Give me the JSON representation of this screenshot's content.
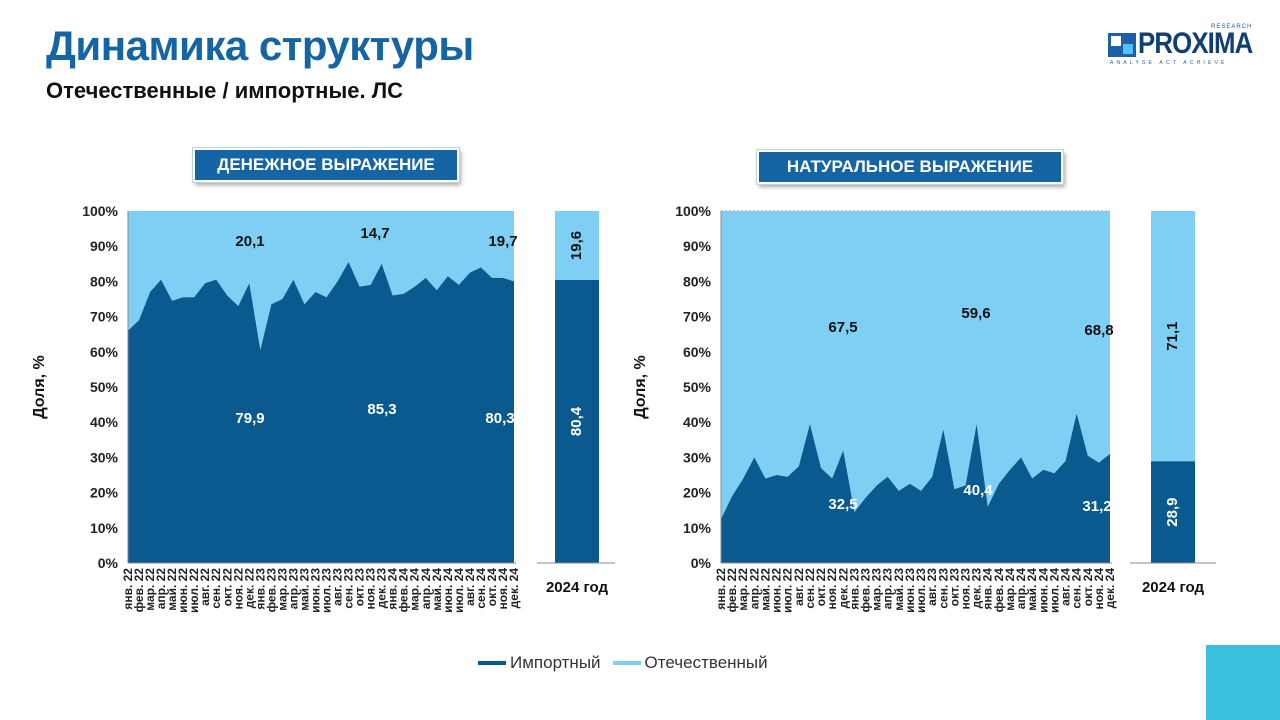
{
  "header": {
    "title": "Динамика структуры",
    "subtitle": "Отечественные / импортные. ЛС"
  },
  "logo": {
    "name": "PROXIMA",
    "research": "RESEARCH",
    "tagline": "ANALYSE  ACT  ACHIEVE"
  },
  "panels": {
    "left_label": "ДЕНЕЖНОЕ ВЫРАЖЕНИЕ",
    "right_label": "НАТУРАЛЬНОЕ ВЫРАЖЕНИЕ"
  },
  "legend": {
    "items": [
      {
        "label": "Импортный",
        "color": "#0a5a8f"
      },
      {
        "label": "Отечественный",
        "color": "#7fcff5"
      }
    ]
  },
  "colors": {
    "import": "#0a5a8f",
    "domestic": "#7fcff5",
    "title": "#1565a5",
    "accent_square": "#3bbfdf"
  },
  "chart_data": [
    {
      "type": "area",
      "stacked": true,
      "ylabel": "Доля, %",
      "ylim": [
        0,
        100
      ],
      "yticks": [
        "0%",
        "10%",
        "20%",
        "30%",
        "40%",
        "50%",
        "60%",
        "70%",
        "80%",
        "90%",
        "100%"
      ],
      "x": [
        "янв. 22",
        "фев. 22",
        "мар. 22",
        "апр. 22",
        "май. 22",
        "июн. 22",
        "июл. 22",
        "авг. 22",
        "сен. 22",
        "окт. 22",
        "ноя. 22",
        "дек. 22",
        "янв. 23",
        "фев. 23",
        "мар. 23",
        "апр. 23",
        "май. 23",
        "июн. 23",
        "июл. 23",
        "авг. 23",
        "сен. 23",
        "окт. 23",
        "ноя. 23",
        "дек. 23",
        "янв. 24",
        "фев. 24",
        "мар. 24",
        "апр. 24",
        "май. 24",
        "июн. 24",
        "июл. 24",
        "авг. 24",
        "сен. 24",
        "окт. 24",
        "ноя. 24",
        "дек. 24"
      ],
      "series": [
        {
          "name": "Импортный",
          "values": [
            66,
            69,
            77,
            80.5,
            74.5,
            75.5,
            75.5,
            79.5,
            80.5,
            76,
            73,
            79.5,
            60.5,
            73.5,
            75,
            80.5,
            73.5,
            77,
            75.5,
            80,
            85.5,
            78.5,
            79,
            85,
            76,
            76.5,
            78.5,
            81,
            77.5,
            81.5,
            79,
            82.5,
            84,
            81,
            81,
            80
          ]
        },
        {
          "name": "Отечественный",
          "values": [
            34,
            31,
            23,
            19.5,
            25.5,
            24.5,
            24.5,
            20.5,
            19.5,
            24,
            27,
            20.5,
            39.5,
            26.5,
            25,
            19.5,
            26.5,
            23,
            24.5,
            20,
            14.5,
            21.5,
            21,
            15,
            24,
            23.5,
            21.5,
            19,
            22.5,
            18.5,
            21,
            17.5,
            16,
            19,
            19,
            20
          ]
        }
      ],
      "annotations": {
        "domestic": [
          "20,1",
          "14,7",
          "19,7"
        ],
        "import": [
          "79,9",
          "85,3",
          "80,3"
        ]
      },
      "summary_bar": {
        "category": "2024 год",
        "import": 80.4,
        "domestic": 19.6,
        "import_label": "80,4",
        "domestic_label": "19,6"
      }
    },
    {
      "type": "area",
      "stacked": true,
      "ylabel": "Доля, %",
      "ylim": [
        0,
        100
      ],
      "yticks": [
        "0%",
        "10%",
        "20%",
        "30%",
        "40%",
        "50%",
        "60%",
        "70%",
        "80%",
        "90%",
        "100%"
      ],
      "x": [
        "янв. 22",
        "фев. 22",
        "мар. 22",
        "апр. 22",
        "май. 22",
        "июн. 22",
        "июл. 22",
        "авг. 22",
        "сен. 22",
        "окт. 22",
        "ноя. 22",
        "дек. 22",
        "янв. 23",
        "фев. 23",
        "мар. 23",
        "апр. 23",
        "май. 23",
        "июн. 23",
        "июл. 23",
        "авг. 23",
        "сен. 23",
        "окт. 23",
        "ноя. 23",
        "дек. 23",
        "янв. 24",
        "фев. 24",
        "мар. 24",
        "апр. 24",
        "май. 24",
        "июн. 24",
        "июл. 24",
        "авг. 24",
        "сен. 24",
        "окт. 24",
        "ноя. 24",
        "дек. 24"
      ],
      "series": [
        {
          "name": "Импортный",
          "values": [
            12.5,
            19,
            24,
            30,
            24,
            25,
            24.5,
            27.5,
            39.5,
            27,
            24,
            32,
            14.5,
            18.5,
            22,
            24.5,
            20.5,
            22.5,
            20.5,
            24.5,
            38,
            21,
            22,
            39.5,
            16,
            22.5,
            26.5,
            30,
            24,
            26.5,
            25.5,
            29,
            42.5,
            30.5,
            28.5,
            31
          ]
        },
        {
          "name": "Отечественный",
          "values": [
            87.5,
            81,
            76,
            70,
            76,
            75,
            75.5,
            72.5,
            60.5,
            73,
            76,
            68,
            85.5,
            81.5,
            78,
            75.5,
            79.5,
            77.5,
            79.5,
            75.5,
            62,
            79,
            78,
            60.5,
            84,
            77.5,
            73.5,
            70,
            76,
            73.5,
            74.5,
            71,
            57.5,
            69.5,
            71.5,
            69
          ]
        }
      ],
      "annotations": {
        "domestic": [
          "67,5",
          "59,6",
          "68,8"
        ],
        "import": [
          "32,5",
          "40,4",
          "31,2"
        ]
      },
      "summary_bar": {
        "category": "2024 год",
        "import": 28.9,
        "domestic": 71.1,
        "import_label": "28,9",
        "domestic_label": "71,1"
      }
    }
  ]
}
